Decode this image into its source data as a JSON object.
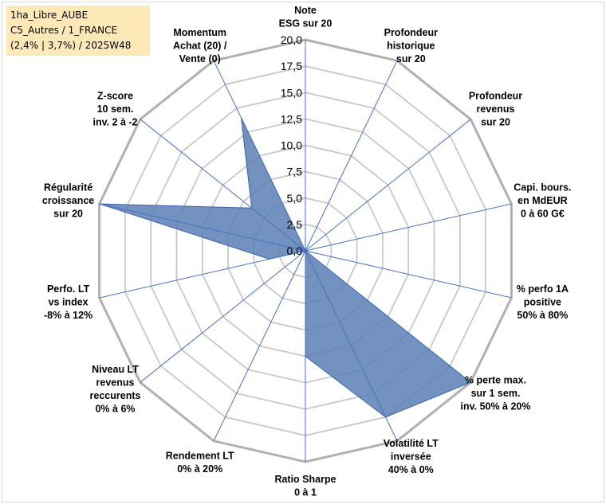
{
  "info": {
    "line1": "1ha_Libre_AUBE",
    "line2": "C5_Autres / 1_FRANCE",
    "line3": "(2,4% | 3,7%) / 2025W48"
  },
  "colors": {
    "fill": "#5b7fb5",
    "line": "#3a63a8",
    "grid": "#c8c8c8",
    "axis": "#4472c4",
    "ticks_bg": "#ffffff"
  },
  "chart_data": {
    "type": "radar",
    "r_range": [
      0,
      20
    ],
    "grid": true,
    "ticks": [
      "0,0",
      "2,5",
      "5,0",
      "7,5",
      "10,0",
      "12,5",
      "15,0",
      "17,5",
      "20,0"
    ],
    "tick_values": [
      0,
      2.5,
      5,
      7.5,
      10,
      12.5,
      15,
      17.5,
      20
    ],
    "axes": [
      {
        "label": [
          "Note",
          "ESG sur 20"
        ],
        "value": 0
      },
      {
        "label": [
          "Profondeur",
          "historique",
          "sur 20"
        ],
        "value": 0
      },
      {
        "label": [
          "Profondeur",
          "revenus",
          "sur 20"
        ],
        "value": 0
      },
      {
        "label": [
          "Capi. bours.",
          "en MdEUR",
          "0 à 60 G€"
        ],
        "value": 0
      },
      {
        "label": [
          "% perfo 1A",
          "positive",
          "50% à 80%"
        ],
        "value": 0
      },
      {
        "label": [
          "% perte max.",
          "sur 1 sem.",
          "inv. 50% à 20%"
        ],
        "value": 20
      },
      {
        "label": [
          "Volatilité LT",
          "inversée",
          "40% à 0%"
        ],
        "value": 17.5
      },
      {
        "label": [
          "Ratio Sharpe",
          "0 à 1"
        ],
        "value": 10
      },
      {
        "label": [
          "Rendement LT",
          "0% à 20%"
        ],
        "value": 0
      },
      {
        "label": [
          "Niveau LT",
          "revenus",
          "reccurents",
          "0% à 6%"
        ],
        "value": 0
      },
      {
        "label": [
          "Perfo. LT",
          "vs index",
          "-8% à 12%"
        ],
        "value": 3.5
      },
      {
        "label": [
          "Régularité",
          "croissance",
          "sur 20"
        ],
        "value": 20
      },
      {
        "label": [
          "Z-score",
          "10 sem.",
          "inv. 2 à -2"
        ],
        "value": 6.5
      },
      {
        "label": [
          "Momentum",
          "Achat (20) /",
          "Vente (0)"
        ],
        "value": 14
      }
    ]
  }
}
